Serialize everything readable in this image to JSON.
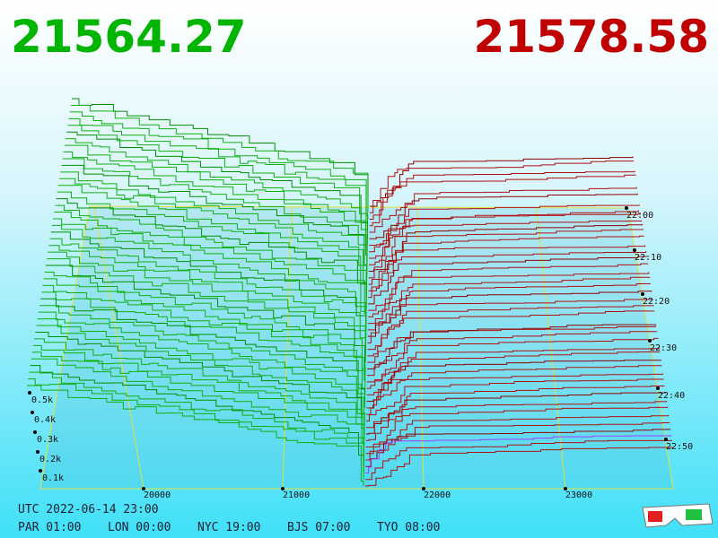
{
  "header": {
    "bid": "21564.27",
    "ask": "21578.58"
  },
  "price_axis": [
    "20000",
    "21000",
    "22000",
    "23000"
  ],
  "volume_axis": [
    "0.5k",
    "0.4k",
    "0.3k",
    "0.2k",
    "0.1k"
  ],
  "time_axis": [
    "22:00",
    "22:10",
    "22:20",
    "22:30",
    "22:40",
    "22:50"
  ],
  "footer": {
    "utc": "UTC 2022-06-14 23:00",
    "cities": [
      "PAR 01:00",
      "LON 00:00",
      "NYC 19:00",
      "BJS 07:00",
      "TYO 08:00"
    ]
  }
}
